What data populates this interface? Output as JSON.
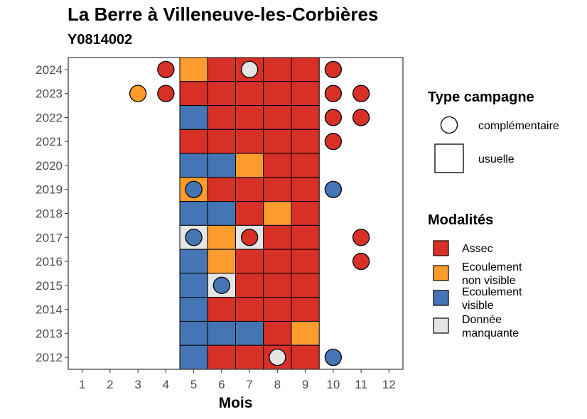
{
  "chart_data": {
    "type": "heatmap",
    "title": "La Berre à Villeneuve-les-Corbières",
    "subtitle": "Y0814002",
    "xlabel": "Mois",
    "ylabel": "",
    "x_ticks": [
      1,
      2,
      3,
      4,
      5,
      6,
      7,
      8,
      9,
      10,
      11,
      12
    ],
    "y_ticks": [
      2012,
      2013,
      2014,
      2015,
      2016,
      2017,
      2018,
      2019,
      2020,
      2021,
      2022,
      2023,
      2024
    ],
    "xlim": [
      0.5,
      12.5
    ],
    "ylim": [
      2011.5,
      2024.5
    ],
    "grid": false,
    "colors": {
      "Assec": "#d63027",
      "Ecoulement non visible": "#fd9c2d",
      "Ecoulement visible": "#4575b4",
      "Donnée manquante": "#e5e5e5"
    },
    "legend_campagne": {
      "title": "Type campagne",
      "items": [
        {
          "label": "complémentaire",
          "shape": "circle"
        },
        {
          "label": "usuelle",
          "shape": "square"
        }
      ]
    },
    "legend_modalites": {
      "title": "Modalités",
      "items": [
        {
          "key": "Assec",
          "lines": [
            "Assec"
          ]
        },
        {
          "key": "Ecoulement non visible",
          "lines": [
            "Ecoulement",
            "non visible"
          ]
        },
        {
          "key": "Ecoulement visible",
          "lines": [
            "Ecoulement",
            "visible"
          ]
        },
        {
          "key": "Donnée manquante",
          "lines": [
            "Donnée",
            "manquante"
          ]
        }
      ]
    },
    "usuelle": [
      {
        "year": 2024,
        "months": [
          "Ecoulement non visible",
          "Assec",
          "Assec",
          "Assec",
          "Assec"
        ]
      },
      {
        "year": 2023,
        "months": [
          "Assec",
          "Assec",
          "Assec",
          "Assec",
          "Assec"
        ]
      },
      {
        "year": 2022,
        "months": [
          "Ecoulement visible",
          "Assec",
          "Assec",
          "Assec",
          "Assec"
        ]
      },
      {
        "year": 2021,
        "months": [
          "Assec",
          "Assec",
          "Assec",
          "Assec",
          "Assec"
        ]
      },
      {
        "year": 2020,
        "months": [
          "Ecoulement visible",
          "Ecoulement visible",
          "Ecoulement non visible",
          "Assec",
          "Assec"
        ]
      },
      {
        "year": 2019,
        "months": [
          "Ecoulement non visible",
          "Assec",
          "Assec",
          "Assec",
          "Assec"
        ]
      },
      {
        "year": 2018,
        "months": [
          "Ecoulement visible",
          "Ecoulement visible",
          "Assec",
          "Ecoulement non visible",
          "Assec"
        ]
      },
      {
        "year": 2017,
        "months": [
          "Donnée manquante",
          "Ecoulement non visible",
          "Donnée manquante",
          "Assec",
          "Assec"
        ]
      },
      {
        "year": 2016,
        "months": [
          "Ecoulement visible",
          "Ecoulement non visible",
          "Assec",
          "Assec",
          "Assec"
        ]
      },
      {
        "year": 2015,
        "months": [
          "Ecoulement visible",
          "Donnée manquante",
          "Assec",
          "Assec",
          "Assec"
        ]
      },
      {
        "year": 2014,
        "months": [
          "Ecoulement visible",
          "Assec",
          "Assec",
          "Assec",
          "Assec"
        ]
      },
      {
        "year": 2013,
        "months": [
          "Ecoulement visible",
          "Ecoulement visible",
          "Ecoulement visible",
          "Assec",
          "Ecoulement non visible"
        ]
      },
      {
        "year": 2012,
        "months": [
          "Ecoulement visible",
          "Assec",
          "Assec",
          "Assec",
          "Assec"
        ]
      }
    ],
    "usuelle_month_start": 5,
    "complementaire": [
      {
        "year": 2024,
        "month": 4,
        "value": "Assec"
      },
      {
        "year": 2024,
        "month": 7,
        "value": "Donnée manquante"
      },
      {
        "year": 2024,
        "month": 10,
        "value": "Assec"
      },
      {
        "year": 2023,
        "month": 3,
        "value": "Ecoulement non visible"
      },
      {
        "year": 2023,
        "month": 4,
        "value": "Assec"
      },
      {
        "year": 2023,
        "month": 10,
        "value": "Assec"
      },
      {
        "year": 2023,
        "month": 11,
        "value": "Assec"
      },
      {
        "year": 2022,
        "month": 10,
        "value": "Assec"
      },
      {
        "year": 2022,
        "month": 11,
        "value": "Assec"
      },
      {
        "year": 2021,
        "month": 10,
        "value": "Assec"
      },
      {
        "year": 2019,
        "month": 5,
        "value": "Ecoulement visible"
      },
      {
        "year": 2019,
        "month": 10,
        "value": "Ecoulement visible"
      },
      {
        "year": 2017,
        "month": 5,
        "value": "Ecoulement visible"
      },
      {
        "year": 2017,
        "month": 7,
        "value": "Assec"
      },
      {
        "year": 2017,
        "month": 11,
        "value": "Assec"
      },
      {
        "year": 2016,
        "month": 11,
        "value": "Assec"
      },
      {
        "year": 2015,
        "month": 6,
        "value": "Ecoulement visible"
      },
      {
        "year": 2012,
        "month": 8,
        "value": "Donnée manquante"
      },
      {
        "year": 2012,
        "month": 10,
        "value": "Ecoulement visible"
      }
    ]
  }
}
